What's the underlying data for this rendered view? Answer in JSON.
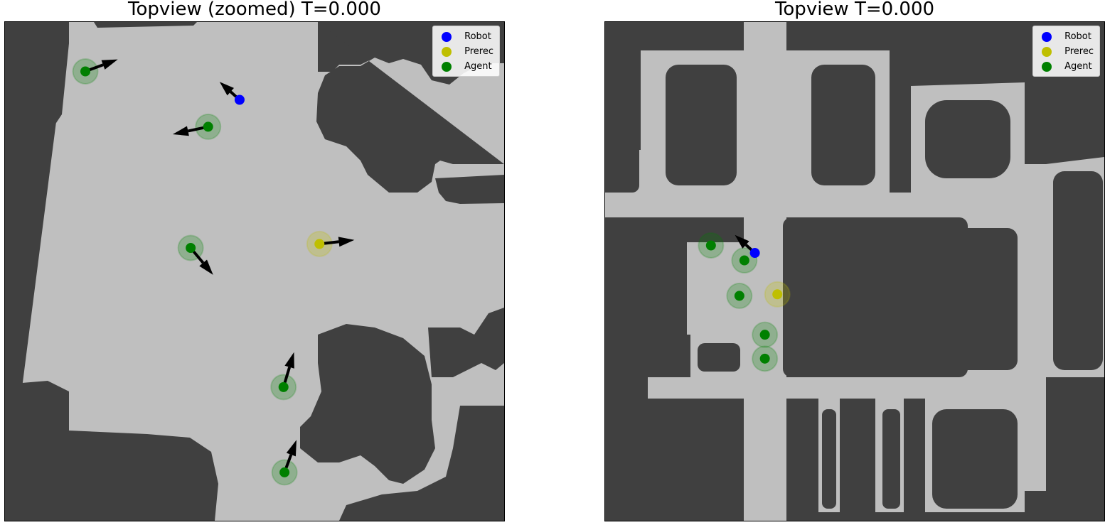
{
  "colors": {
    "obstacle": "#404040",
    "free": "#bfbfbf",
    "robot": "#0000ff",
    "prerec": "#bfbf00",
    "agent": "#008000",
    "arrow": "#000000"
  },
  "legend": [
    {
      "label": "Robot",
      "color": "#0000ff"
    },
    {
      "label": "Prerec",
      "color": "#bfbf00"
    },
    {
      "label": "Agent",
      "color": "#008000"
    }
  ],
  "chart_data": [
    {
      "type": "scatter",
      "title": "Topview (zoomed) T=0.000",
      "xlim": [
        0,
        100
      ],
      "ylim": [
        0,
        100
      ],
      "grid": false,
      "axes_ticks": false,
      "legend_position": "top-right",
      "robot": [
        {
          "x": 47.0,
          "y": 84.4,
          "dx": -4.0,
          "dy": 3.6
        }
      ],
      "prerec": [
        {
          "x": 63.0,
          "y": 55.5,
          "dx": 7.0,
          "dy": 0.8
        }
      ],
      "agents": [
        {
          "x": 16.1,
          "y": 90.1,
          "dx": 6.5,
          "dy": 2.4
        },
        {
          "x": 40.7,
          "y": 79.0,
          "dx": -7.1,
          "dy": -1.5
        },
        {
          "x": 37.2,
          "y": 54.7,
          "dx": 4.5,
          "dy": -5.4
        },
        {
          "x": 55.8,
          "y": 26.8,
          "dx": 2.1,
          "dy": 7.0
        },
        {
          "x": 56.0,
          "y": 9.7,
          "dx": 2.4,
          "dy": 6.5
        }
      ]
    },
    {
      "type": "scatter",
      "title": "Topview T=0.000",
      "xlim": [
        0,
        100
      ],
      "ylim": [
        0,
        100
      ],
      "grid": false,
      "axes_ticks": false,
      "legend_position": "top-right",
      "robot": [
        {
          "x": 30.0,
          "y": 53.7,
          "dx": -4.0,
          "dy": 3.6
        }
      ],
      "prerec": [
        {
          "x": 34.5,
          "y": 45.4,
          "dx": 0,
          "dy": 0
        }
      ],
      "agents": [
        {
          "x": 21.2,
          "y": 55.2,
          "dx": 0,
          "dy": 0
        },
        {
          "x": 27.9,
          "y": 52.2,
          "dx": 0,
          "dy": 0
        },
        {
          "x": 26.9,
          "y": 45.1,
          "dx": 0,
          "dy": 0
        },
        {
          "x": 32.0,
          "y": 37.3,
          "dx": 0,
          "dy": 0
        },
        {
          "x": 32.0,
          "y": 32.5,
          "dx": 0,
          "dy": 0
        }
      ]
    }
  ]
}
